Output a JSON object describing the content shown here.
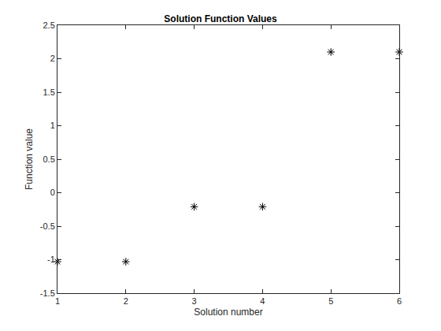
{
  "chart_data": {
    "type": "scatter",
    "title": "Solution Function Values",
    "x_label": "Solution number",
    "y_label": "Function value",
    "x": [
      1,
      2,
      3,
      4,
      5,
      6
    ],
    "values": [
      -1.03,
      -1.03,
      -0.21,
      -0.21,
      2.1,
      2.1
    ],
    "color": "#000000",
    "marker": "asterisk",
    "xlim": [
      1,
      6
    ],
    "xticks": [
      1,
      2,
      3,
      4,
      5,
      6
    ],
    "ylim": [
      -1.5,
      2.5
    ],
    "yticks": [
      -1.5,
      -1,
      -0.5,
      0,
      0.5,
      1,
      1.5,
      2,
      2.5
    ],
    "grid": false
  }
}
